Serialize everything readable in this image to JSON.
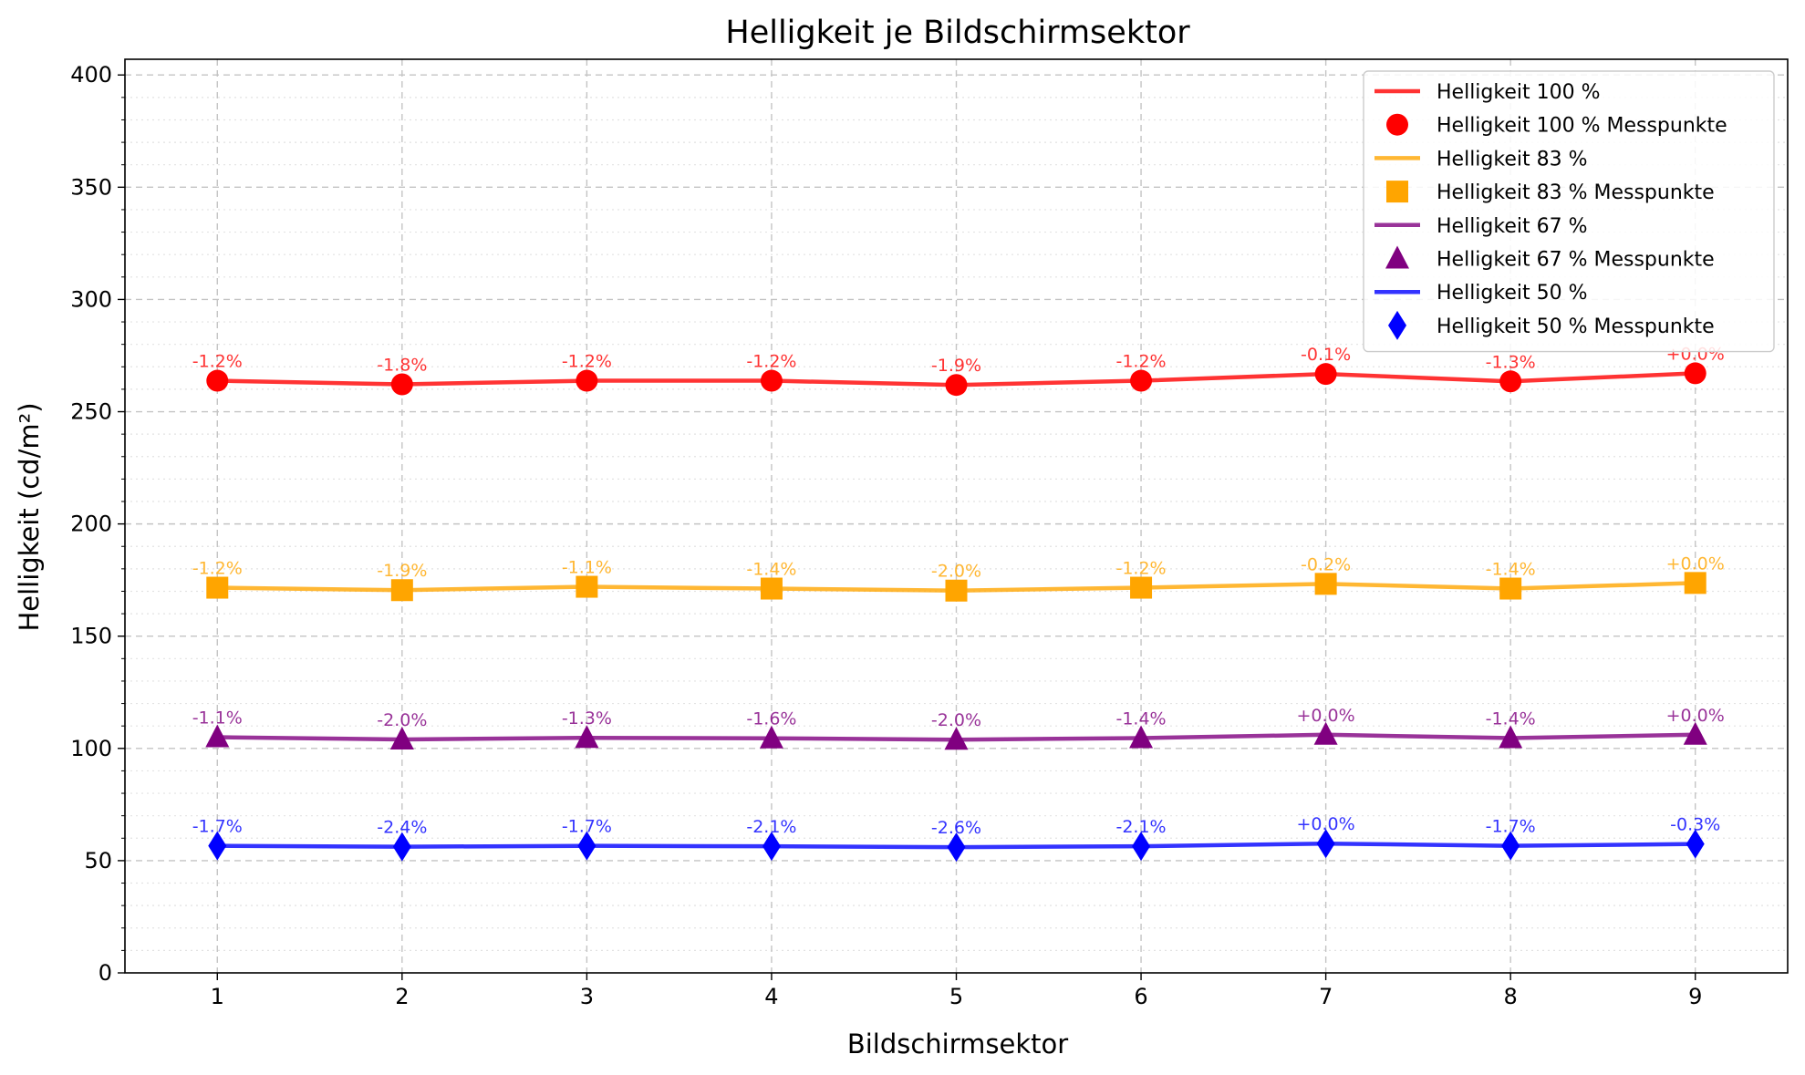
{
  "chart_data": {
    "type": "line",
    "title": "Helligkeit je Bildschirmsektor",
    "xlabel": "Bildschirmsektor",
    "ylabel": "Helligkeit (cd/m²)",
    "x": [
      1,
      2,
      3,
      4,
      5,
      6,
      7,
      8,
      9
    ],
    "xlim": [
      0.5,
      9.5
    ],
    "ylim": [
      0,
      407
    ],
    "yticks": [
      0,
      50,
      100,
      150,
      200,
      250,
      300,
      350,
      400
    ],
    "grid": true,
    "legend_position": "upper right",
    "series": [
      {
        "name": "Helligkeit 100 %",
        "marker_name": "Helligkeit 100 % Messpunkte",
        "color": "#ff0000",
        "marker": "circle",
        "values": [
          263.8,
          262.2,
          263.8,
          263.8,
          261.9,
          263.8,
          266.8,
          263.5,
          267.1
        ],
        "labels": [
          "-1.2%",
          "-1.8%",
          "-1.2%",
          "-1.2%",
          "-1.9%",
          "-1.2%",
          "-0.1%",
          "-1.3%",
          "+0.0%"
        ]
      },
      {
        "name": "Helligkeit 83 %",
        "marker_name": "Helligkeit 83 % Messpunkte",
        "color": "#ffa500",
        "marker": "square",
        "values": [
          171.6,
          170.5,
          172.0,
          171.2,
          170.3,
          171.6,
          173.3,
          171.2,
          173.7
        ],
        "labels": [
          "-1.2%",
          "-1.9%",
          "-1.1%",
          "-1.4%",
          "-2.0%",
          "-1.2%",
          "-0.2%",
          "-1.4%",
          "+0.0%"
        ]
      },
      {
        "name": "Helligkeit 67 %",
        "marker_name": "Helligkeit 67 % Messpunkte",
        "color": "#800080",
        "marker": "triangle",
        "values": [
          105.0,
          104.0,
          104.7,
          104.5,
          103.9,
          104.6,
          106.1,
          104.6,
          106.1
        ],
        "labels": [
          "-1.1%",
          "-2.0%",
          "-1.3%",
          "-1.6%",
          "-2.0%",
          "-1.4%",
          "+0.0%",
          "-1.4%",
          "+0.0%"
        ]
      },
      {
        "name": "Helligkeit 50 %",
        "marker_name": "Helligkeit 50 % Messpunkte",
        "color": "#0000ff",
        "marker": "diamond",
        "values": [
          56.6,
          56.2,
          56.6,
          56.4,
          56.0,
          56.4,
          57.6,
          56.6,
          57.4
        ],
        "labels": [
          "-1.7%",
          "-2.4%",
          "-1.7%",
          "-2.1%",
          "-2.6%",
          "-2.1%",
          "+0.0%",
          "-1.7%",
          "-0.3%"
        ]
      }
    ]
  }
}
